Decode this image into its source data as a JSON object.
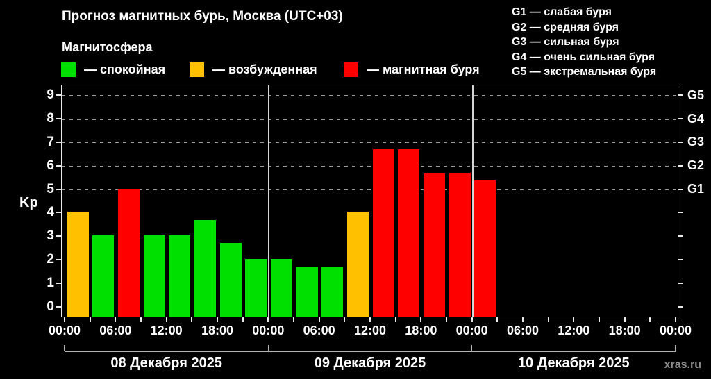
{
  "title": "Прогноз магнитных бурь, Москва (UTC+03)",
  "subtitle": "Магнитосфера",
  "legend": [
    {
      "name": "quiet",
      "label": "— спокойная",
      "color": "#00e000"
    },
    {
      "name": "excited",
      "label": "— возбужденная",
      "color": "#ffc000"
    },
    {
      "name": "storm",
      "label": "— магнитная буря",
      "color": "#ff0000"
    }
  ],
  "g_scale_legend": [
    "G1 — слабая буря",
    "G2 — средняя буря",
    "G3 — сильная буря",
    "G4 — очень сильная буря",
    "G5 — экстремальная буря"
  ],
  "watermark": "xras.ru",
  "chart_data": {
    "type": "bar",
    "title": "Прогноз магнитных бурь, Москва (UTC+03)",
    "ylabel": "Kp",
    "ylim": [
      -0.45,
      9.45
    ],
    "y_ticks": [
      0,
      1,
      2,
      3,
      4,
      5,
      6,
      7,
      8,
      9
    ],
    "gridlines_kp": [
      5,
      6,
      7,
      8,
      9
    ],
    "grid_style": "dashed",
    "right_axis_labels": [
      {
        "kp": 9,
        "label": "G5"
      },
      {
        "kp": 8,
        "label": "G4"
      },
      {
        "kp": 7,
        "label": "G3"
      },
      {
        "kp": 6,
        "label": "G2"
      },
      {
        "kp": 5,
        "label": "G1"
      }
    ],
    "hours_per_slot": 3,
    "slots_per_day": 8,
    "x_tick_labels_6h": [
      "00:00",
      "06:00",
      "12:00",
      "18:00",
      "00:00",
      "06:00",
      "12:00",
      "18:00",
      "00:00",
      "06:00",
      "12:00",
      "18:00",
      "00:00"
    ],
    "level_colors": {
      "quiet": "#00e000",
      "excited": "#ffc000",
      "storm": "#ff0000"
    },
    "days": [
      {
        "date": "08 Декабря 2025",
        "bars": [
          {
            "kp": 4,
            "level": "excited"
          },
          {
            "kp": 3,
            "level": "quiet"
          },
          {
            "kp": 5,
            "level": "storm"
          },
          {
            "kp": 3,
            "level": "quiet"
          },
          {
            "kp": 3,
            "level": "quiet"
          },
          {
            "kp": 3.67,
            "level": "quiet"
          },
          {
            "kp": 2.67,
            "level": "quiet"
          },
          {
            "kp": 2,
            "level": "quiet"
          }
        ]
      },
      {
        "date": "09 Декабря 2025",
        "bars": [
          {
            "kp": 2,
            "level": "quiet"
          },
          {
            "kp": 1.67,
            "level": "quiet"
          },
          {
            "kp": 1.67,
            "level": "quiet"
          },
          {
            "kp": 4,
            "level": "excited"
          },
          {
            "kp": 6.67,
            "level": "storm"
          },
          {
            "kp": 6.67,
            "level": "storm"
          },
          {
            "kp": 5.67,
            "level": "storm"
          },
          {
            "kp": 5.67,
            "level": "storm"
          }
        ]
      },
      {
        "date": "10 Декабря 2025",
        "bars": [
          {
            "kp": 5.33,
            "level": "storm"
          }
        ]
      }
    ]
  }
}
